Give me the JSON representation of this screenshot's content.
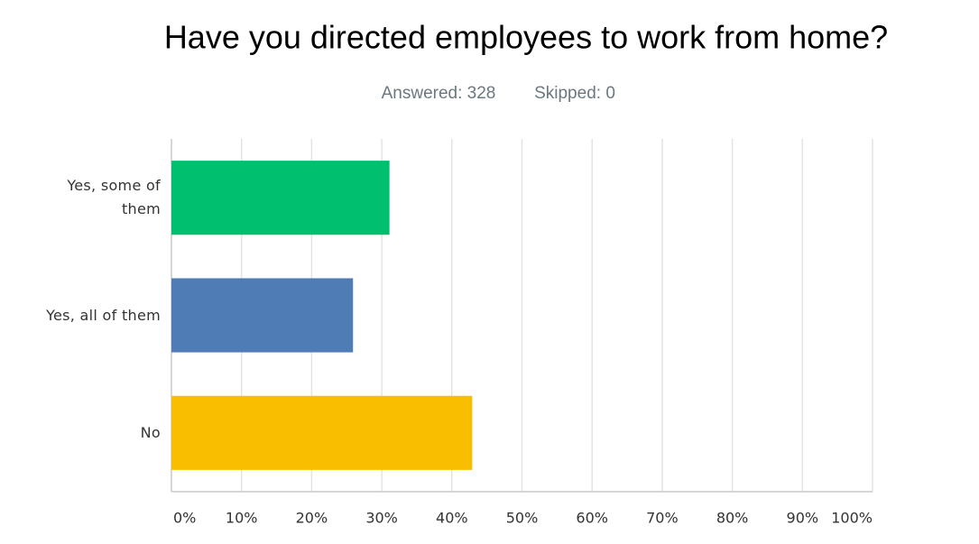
{
  "chart_data": {
    "type": "bar",
    "orientation": "horizontal",
    "title": "Have you directed employees to work from home?",
    "answered": "Answered: 328",
    "skipped": "Skipped: 0",
    "categories": [
      "Yes, some of them",
      "Yes, all of them",
      "No"
    ],
    "values": [
      31.1,
      25.9,
      42.9
    ],
    "colors": [
      "#00bf6f",
      "#507cb6",
      "#f9be00"
    ],
    "xlim": [
      0,
      100
    ],
    "xticks": [
      {
        "value": 0,
        "label": "0%"
      },
      {
        "value": 10,
        "label": "10%"
      },
      {
        "value": 20,
        "label": "20%"
      },
      {
        "value": 30,
        "label": "30%"
      },
      {
        "value": 40,
        "label": "40%"
      },
      {
        "value": 50,
        "label": "50%"
      },
      {
        "value": 60,
        "label": "60%"
      },
      {
        "value": 70,
        "label": "70%"
      },
      {
        "value": 80,
        "label": "80%"
      },
      {
        "value": 90,
        "label": "90%"
      },
      {
        "value": 100,
        "label": "100%"
      }
    ],
    "grid": true
  }
}
